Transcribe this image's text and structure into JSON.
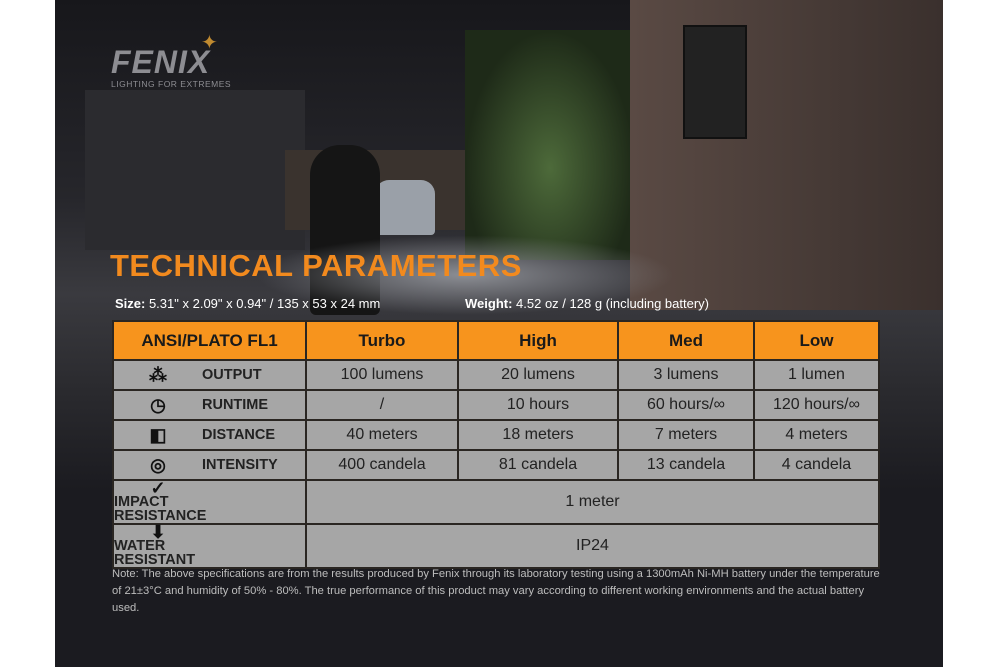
{
  "brand": {
    "name": "FENIX",
    "tagline": "LIGHTING FOR EXTREMES"
  },
  "title": "TECHNICAL PARAMETERS",
  "specs": {
    "size_label": "Size:",
    "size_value": " 5.31\" x 2.09\" x 0.94\" / 135 x 53 x 24 mm",
    "weight_label": "Weight:",
    "weight_value": " 4.52 oz / 128 g (including battery)"
  },
  "table": {
    "headers": [
      "ANSI/PLATO FL1",
      "Turbo",
      "High",
      "Med",
      "Low"
    ],
    "rows": [
      {
        "icon": "burst-icon",
        "label": "OUTPUT",
        "values": [
          "100 lumens",
          "20 lumens",
          "3 lumens",
          "1 lumen"
        ]
      },
      {
        "icon": "clock-icon",
        "label": "RUNTIME",
        "values": [
          "/",
          "10 hours",
          "60 hours/∞",
          "120 hours/∞"
        ]
      },
      {
        "icon": "beam-distance-icon",
        "label": "DISTANCE",
        "values": [
          "40 meters",
          "18 meters",
          "7 meters",
          "4 meters"
        ]
      },
      {
        "icon": "target-icon",
        "label": "INTENSITY",
        "values": [
          "400 candela",
          "81 candela",
          "13 candela",
          "4 candela"
        ]
      },
      {
        "icon": "impact-icon",
        "label": "IMPACT RESISTANCE",
        "value": "1 meter"
      },
      {
        "icon": "water-icon",
        "label": "WATER RESISTANT",
        "value": "IP24"
      }
    ]
  },
  "note": "Note: The above specifications are from the results produced by Fenix through its laboratory testing using a 1300mAh Ni-MH battery under the temperature of 21±3°C and humidity of 50% - 80%. The true performance of this product may vary according to different working environments and the actual battery used.",
  "colors": {
    "accent": "#f7941d",
    "title": "#f28a1e",
    "cell": "#a6a6a6",
    "panel": "#1b1b20"
  }
}
